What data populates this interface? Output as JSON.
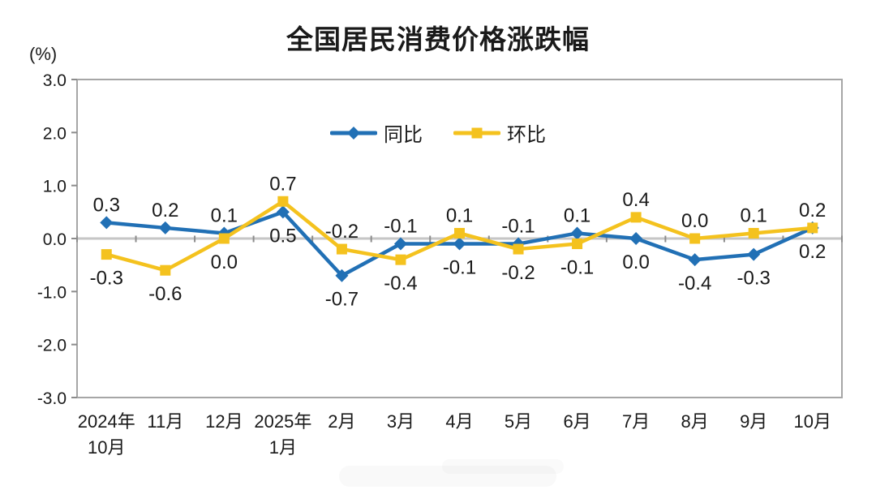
{
  "page": {
    "background": "#ffffff"
  },
  "chart_data": {
    "type": "line",
    "title": "全国居民消费价格涨跌幅",
    "unit_label": "(%)",
    "categories": [
      "2024年\n10月",
      "11月",
      "12月",
      "2025年\n1月",
      "2月",
      "3月",
      "4月",
      "5月",
      "6月",
      "7月",
      "8月",
      "9月",
      "10月"
    ],
    "ylim": [
      -3.0,
      3.0
    ],
    "yticks": [
      "3.0",
      "2.0",
      "1.0",
      "0.0",
      "-1.0",
      "-2.0",
      "-3.0"
    ],
    "ytick_values": [
      3,
      2,
      1,
      0,
      -1,
      -2,
      -3
    ],
    "grid": "zero-line-only",
    "legend_position": "top-center-inside",
    "axis_color": "#a6a6a6",
    "zero_line_color": "#c6c6c6",
    "tick_color": "#8c8c8c",
    "text_color": "#1a1a1a",
    "series": [
      {
        "name": "同比",
        "color": "#2170b5",
        "marker": "diamond",
        "values": [
          0.3,
          0.2,
          0.1,
          0.5,
          -0.7,
          -0.1,
          -0.1,
          -0.1,
          0.1,
          0.0,
          -0.4,
          -0.3,
          0.2
        ],
        "labels": [
          "0.3",
          "0.2",
          "0.1",
          "0.5",
          "-0.7",
          "-0.1",
          "-0.1",
          "-0.1",
          "0.1",
          "0.0",
          "-0.4",
          "-0.3",
          "0.2"
        ],
        "label_sides": [
          "above",
          "above",
          "above",
          "below",
          "below",
          "above",
          "below",
          "above",
          "above",
          "below",
          "below",
          "below",
          "below"
        ]
      },
      {
        "name": "环比",
        "color": "#f4c21e",
        "marker": "square",
        "values": [
          -0.3,
          -0.6,
          0.0,
          0.7,
          -0.2,
          -0.4,
          0.1,
          -0.2,
          -0.1,
          0.4,
          0.0,
          0.1,
          0.2
        ],
        "labels": [
          "-0.3",
          "-0.6",
          "0.0",
          "0.7",
          "-0.2",
          "-0.4",
          "0.1",
          "-0.2",
          "-0.1",
          "0.4",
          "0.0",
          "0.1",
          "0.2"
        ],
        "label_sides": [
          "below",
          "below",
          "below",
          "above",
          "above",
          "below",
          "above",
          "below",
          "below",
          "above",
          "above",
          "above",
          "above"
        ]
      }
    ]
  }
}
